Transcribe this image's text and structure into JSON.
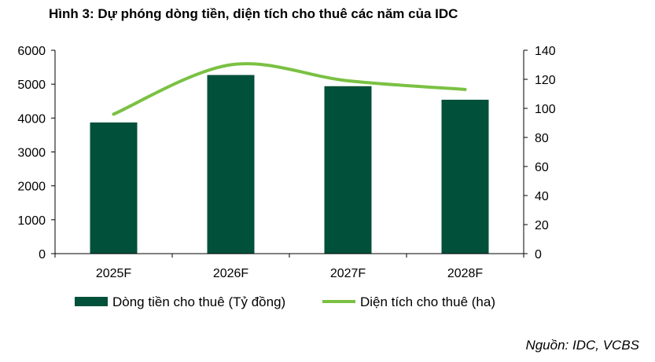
{
  "title": "Hình 3: Dự phóng dòng tiền, diện tích cho thuê các năm của IDC",
  "source": "Nguồn: IDC, VCBS",
  "chart_data": {
    "type": "bar",
    "categories": [
      "2025F",
      "2026F",
      "2027F",
      "2028F"
    ],
    "series": [
      {
        "name": "Dòng tiền cho thuê (Tỷ đồng)",
        "type": "bar",
        "axis": "left",
        "values": [
          3870,
          5270,
          4940,
          4540
        ],
        "color": "#00503a"
      },
      {
        "name": "Diện tích cho thuê (ha)",
        "type": "line",
        "axis": "right",
        "values": [
          96,
          130,
          119,
          113
        ],
        "color": "#7ac143"
      }
    ],
    "y_left": {
      "min": 0,
      "max": 6000,
      "ticks": [
        0,
        1000,
        2000,
        3000,
        4000,
        5000,
        6000
      ]
    },
    "y_right": {
      "min": 0,
      "max": 140,
      "ticks": [
        0,
        20,
        40,
        60,
        80,
        100,
        120,
        140
      ]
    },
    "grid": false,
    "legend_position": "bottom"
  }
}
